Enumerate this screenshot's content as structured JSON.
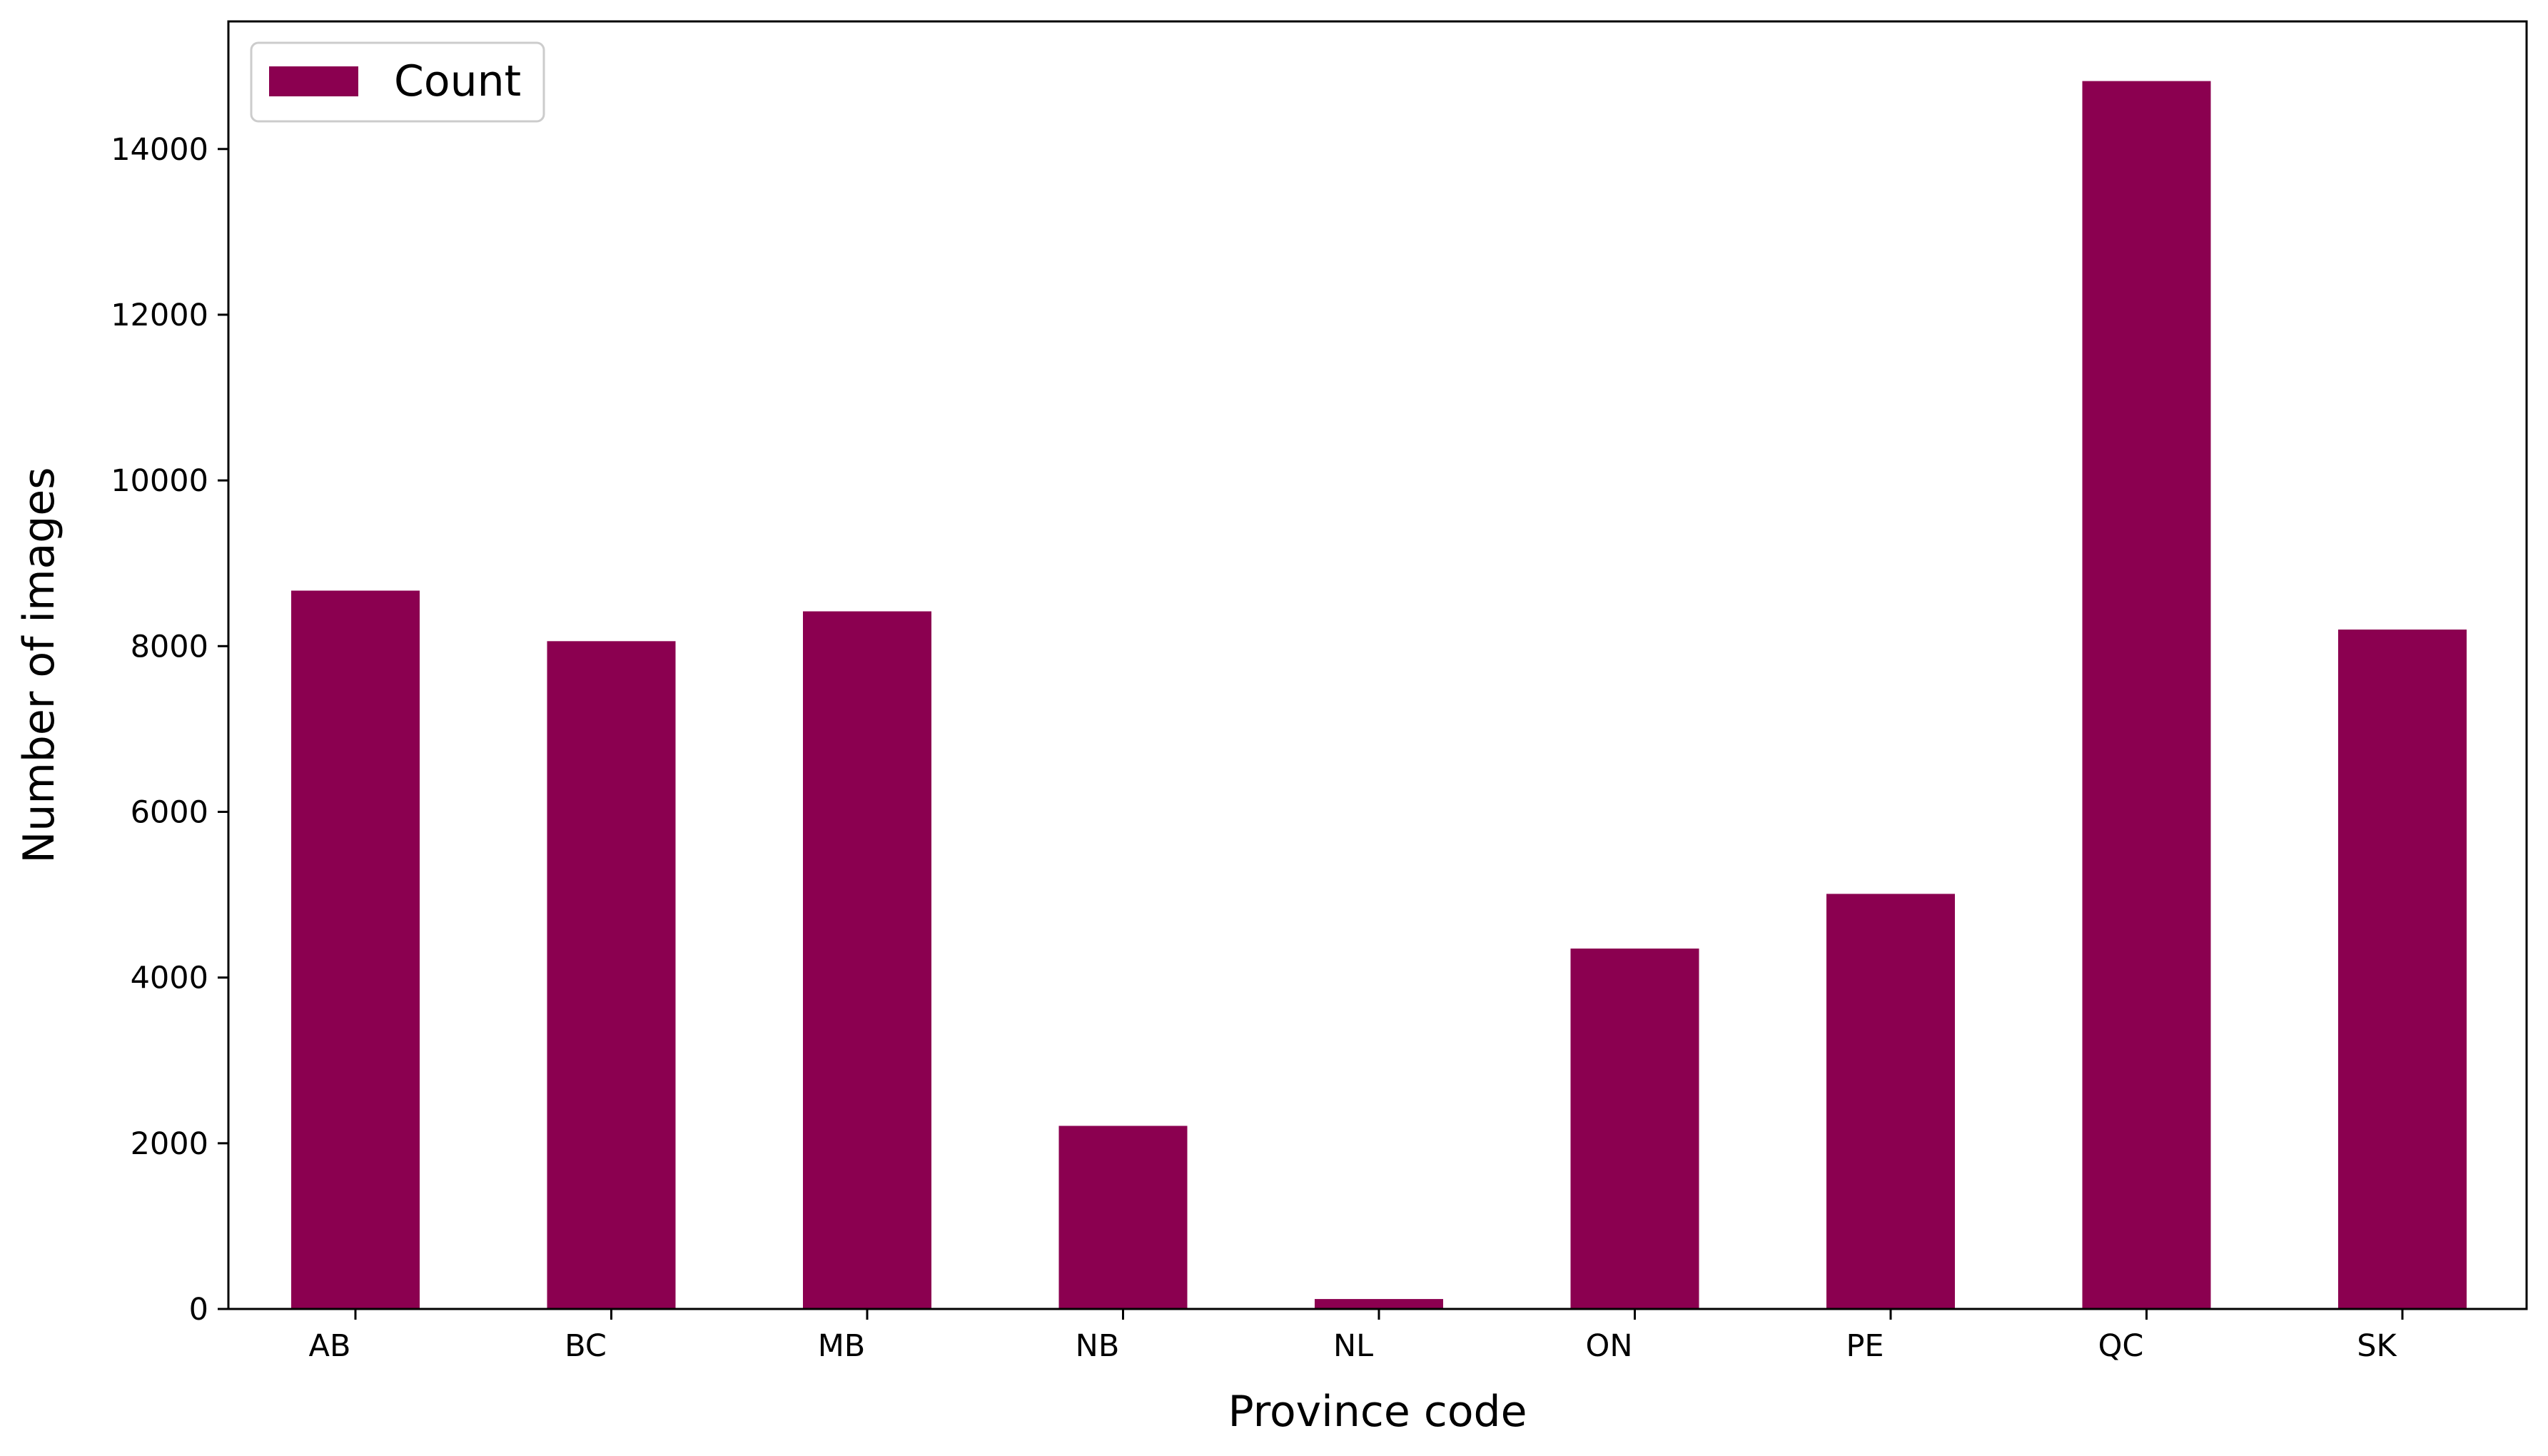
{
  "chart_data": {
    "type": "bar",
    "categories": [
      "AB",
      "BC",
      "MB",
      "NB",
      "NL",
      "ON",
      "PE",
      "QC",
      "SK"
    ],
    "series": [
      {
        "name": "Count",
        "values": [
          8670,
          8060,
          8420,
          2210,
          120,
          4350,
          5010,
          14820,
          8200
        ],
        "color": "#8b0050"
      }
    ],
    "xlabel": "Province code",
    "ylabel": "Number of images",
    "ylim": [
      0,
      15540
    ],
    "yticks": [
      0,
      2000,
      4000,
      6000,
      8000,
      10000,
      12000,
      14000
    ],
    "grid": false,
    "legend_position": "top-left"
  }
}
